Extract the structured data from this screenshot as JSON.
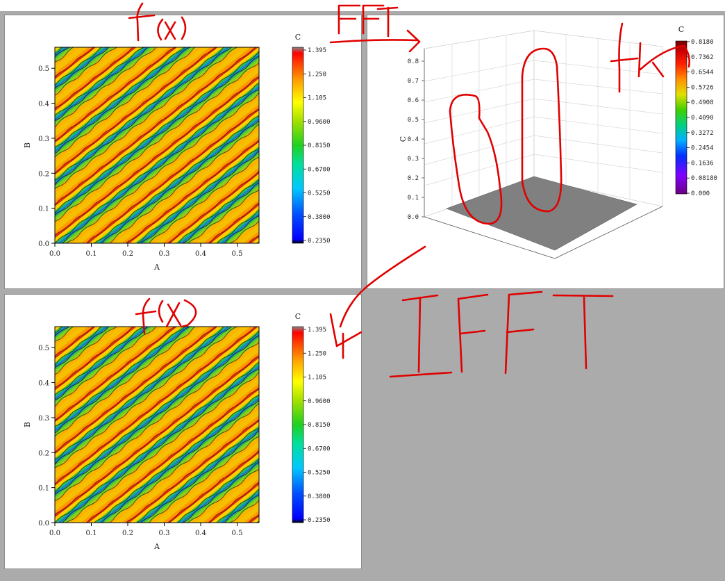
{
  "colors": {
    "background": "#ababab",
    "panel": "#ffffff",
    "annotation": "#e00000",
    "floor": "#808080"
  },
  "annotations": [
    "f(x)",
    "FFT",
    "f(k)",
    "f(x)",
    "IFFT"
  ],
  "chart_data": [
    {
      "type": "heatmap",
      "title": "",
      "xlabel": "A",
      "ylabel": "B",
      "xlim": [
        0,
        0.56
      ],
      "ylim": [
        0,
        0.56
      ],
      "xticks": [
        "0.0",
        "0.1",
        "0.2",
        "0.3",
        "0.4",
        "0.5"
      ],
      "yticks": [
        "0.0",
        "0.1",
        "0.2",
        "0.3",
        "0.4",
        "0.5"
      ],
      "colorbar": {
        "label": "C",
        "levels": [
          "1.395",
          "1.250",
          "1.105",
          "0.9600",
          "0.8150",
          "0.6700",
          "0.5250",
          "0.3800",
          "0.2350"
        ],
        "range": [
          0.235,
          1.395
        ]
      }
    },
    {
      "type": "surface",
      "zlabel": "C",
      "zticks": [
        "0.0",
        "0.1",
        "0.2",
        "0.3",
        "0.4",
        "0.5",
        "0.6",
        "0.7",
        "0.8"
      ],
      "zlim": [
        0,
        0.818
      ],
      "colorbar": {
        "label": "C",
        "levels": [
          "0.8180",
          "0.7362",
          "0.6544",
          "0.5726",
          "0.4908",
          "0.4090",
          "0.3272",
          "0.2454",
          "0.1636",
          "0.08180",
          "0.000"
        ],
        "range": [
          0,
          0.818
        ]
      }
    },
    {
      "type": "heatmap",
      "title": "",
      "xlabel": "A",
      "ylabel": "B",
      "xlim": [
        0,
        0.56
      ],
      "ylim": [
        0,
        0.56
      ],
      "xticks": [
        "0.0",
        "0.1",
        "0.2",
        "0.3",
        "0.4",
        "0.5"
      ],
      "yticks": [
        "0.0",
        "0.1",
        "0.2",
        "0.3",
        "0.4",
        "0.5"
      ],
      "colorbar": {
        "label": "C",
        "levels": [
          "1.395",
          "1.250",
          "1.105",
          "0.9600",
          "0.8150",
          "0.6700",
          "0.5250",
          "0.3800",
          "0.2350"
        ],
        "range": [
          0.235,
          1.395
        ]
      }
    }
  ]
}
